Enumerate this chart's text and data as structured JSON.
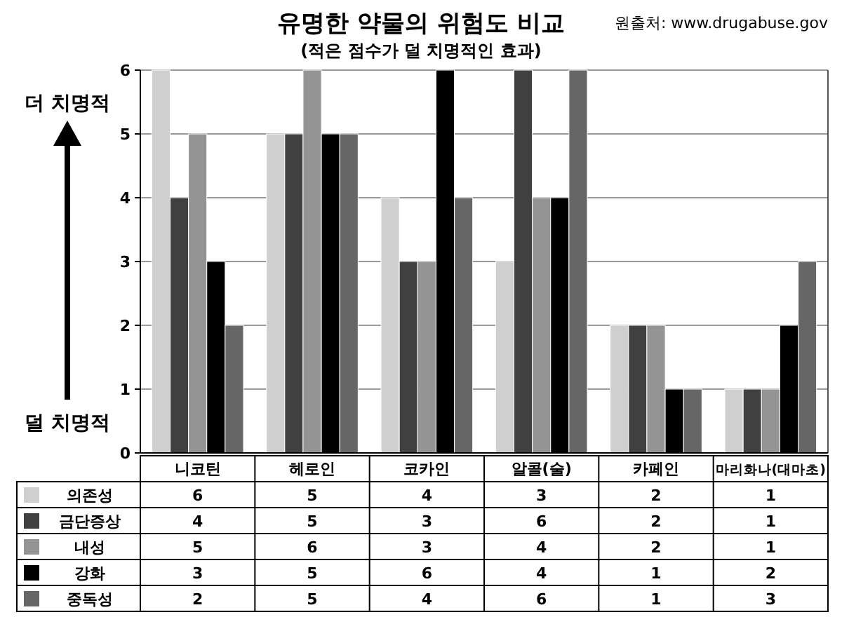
{
  "chart_data": {
    "type": "bar",
    "title": "유명한 약물의 위험도 비교",
    "subtitle": "(적은 점수가 덜 치명적인 효과)",
    "annotations": [
      "원출처: www.drugabuse.gov",
      "더 치명적",
      "덜 치명적"
    ],
    "categories": [
      "니코틴",
      "헤로인",
      "코카인",
      "알콜(술)",
      "카페인",
      "마리화나(대마초)"
    ],
    "series": [
      {
        "name": "의존성",
        "color": "#cfcfcf",
        "values": [
          6,
          5,
          4,
          3,
          2,
          1
        ]
      },
      {
        "name": "금단증상",
        "color": "#404040",
        "values": [
          4,
          5,
          3,
          6,
          2,
          1
        ]
      },
      {
        "name": "내성",
        "color": "#949494",
        "values": [
          5,
          6,
          3,
          4,
          2,
          1
        ]
      },
      {
        "name": "강화",
        "color": "#000000",
        "values": [
          3,
          5,
          6,
          4,
          1,
          2
        ]
      },
      {
        "name": "중독성",
        "color": "#666666",
        "values": [
          2,
          5,
          4,
          6,
          1,
          3
        ]
      }
    ],
    "ylim": [
      0,
      6
    ],
    "yticks": [
      0,
      1,
      2,
      3,
      4,
      5,
      6
    ],
    "grid": "y",
    "legend": "bottom",
    "data_labels": true
  }
}
